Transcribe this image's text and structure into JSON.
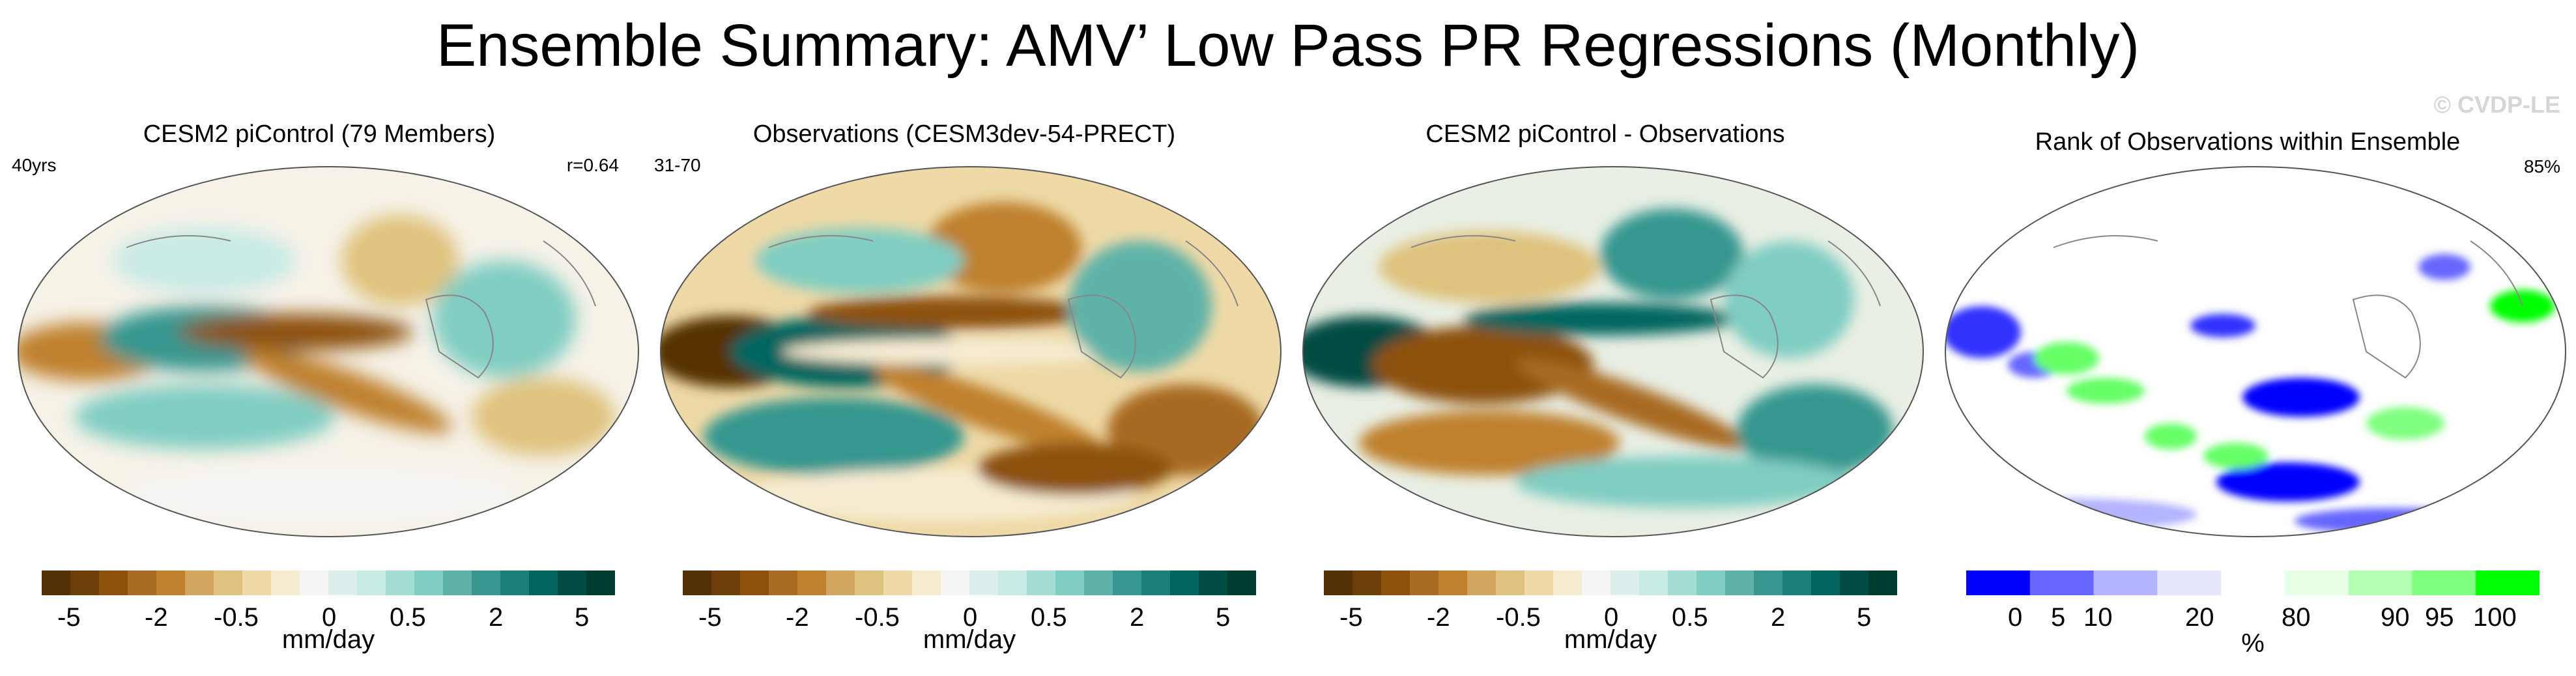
{
  "title": "Ensemble Summary: AMV’ Low Pass PR Regressions (Monthly)",
  "watermark": "© CVDP-LE",
  "colors": {
    "diverging": [
      "#543005",
      "#6e3f0b",
      "#8c510a",
      "#a86b21",
      "#bf812d",
      "#d2a65e",
      "#dfc27d",
      "#eed9a7",
      "#f6ecd1",
      "#f5f5f5",
      "#dcefec",
      "#c7eae5",
      "#a3ddd4",
      "#80cdc1",
      "#5fb2a8",
      "#35978f",
      "#1d8078",
      "#01665e",
      "#004b43",
      "#003c30"
    ],
    "rank": [
      "#0000ff",
      "#6666ff",
      "#b3b3ff",
      "#e6e6ff",
      "#ffffff",
      "#e6ffe6",
      "#b3ffb3",
      "#80ff80",
      "#00ff00"
    ]
  },
  "panels": [
    {
      "title": "CESM2 piControl (79 Members)",
      "left_label": "40yrs",
      "right_label": "r=0.64",
      "units": "mm/day",
      "colorbar_labels": [
        "-5",
        "-2",
        "-0.5",
        "0",
        "0.5",
        "2",
        "5"
      ]
    },
    {
      "title": "Observations (CESM3dev-54-PRECT)",
      "left_label": "31-70",
      "right_label": "",
      "units": "mm/day",
      "colorbar_labels": [
        "-5",
        "-2",
        "-0.5",
        "0",
        "0.5",
        "2",
        "5"
      ]
    },
    {
      "title": "CESM2 piControl - Observations",
      "left_label": "",
      "right_label": "",
      "units": "mm/day",
      "colorbar_labels": [
        "-5",
        "-2",
        "-0.5",
        "0",
        "0.5",
        "2",
        "5"
      ]
    },
    {
      "title": "Rank of Observations within Ensemble",
      "left_label": "",
      "right_label": "85%",
      "units": "%",
      "colorbar_labels": [
        "0",
        "5",
        "10",
        "20",
        "80",
        "90",
        "95",
        "100"
      ]
    }
  ],
  "chart_data": [
    {
      "type": "heatmap",
      "title": "CESM2 piControl (79 Members)",
      "units": "mm/day",
      "colorbar_ticks": [
        -5,
        -2,
        -0.5,
        0,
        0.5,
        2,
        5
      ],
      "pattern_correlation": 0.64
    },
    {
      "type": "heatmap",
      "title": "Observations (CESM3dev-54-PRECT)",
      "units": "mm/day",
      "colorbar_ticks": [
        -5,
        -2,
        -0.5,
        0,
        0.5,
        2,
        5
      ]
    },
    {
      "type": "heatmap",
      "title": "CESM2 piControl - Observations",
      "units": "mm/day",
      "colorbar_ticks": [
        -5,
        -2,
        -0.5,
        0,
        0.5,
        2,
        5
      ]
    },
    {
      "type": "heatmap",
      "title": "Rank of Observations within Ensemble",
      "units": "%",
      "colorbar_ticks": [
        0,
        5,
        10,
        20,
        80,
        90,
        95,
        100
      ],
      "percent_within": 85
    }
  ]
}
